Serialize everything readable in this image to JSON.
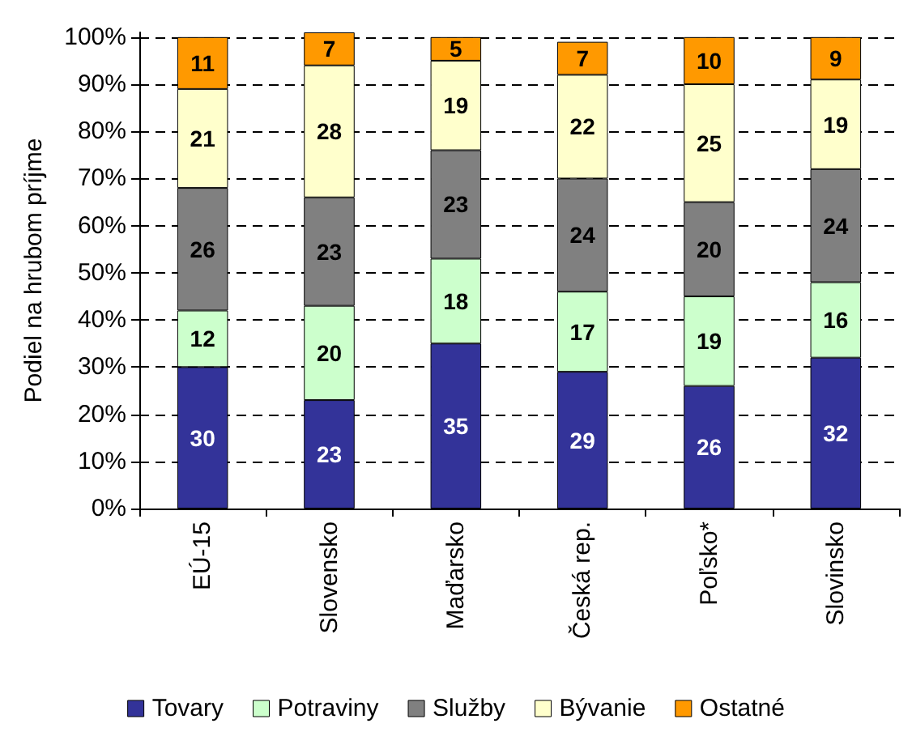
{
  "chart_data": {
    "type": "bar",
    "ylabel": "Podiel na hrubom príjme",
    "categories": [
      "EÚ-15",
      "Slovensko",
      "Maďarsko",
      "Česká rep.",
      "Poľsko*",
      "Slovinsko"
    ],
    "series": [
      {
        "name": "Tovary",
        "color": "#333399",
        "values": [
          30,
          23,
          35,
          29,
          26,
          32
        ]
      },
      {
        "name": "Potraviny",
        "color": "#ccffcc",
        "values": [
          12,
          20,
          18,
          17,
          19,
          16
        ]
      },
      {
        "name": "Služby",
        "color": "#808080",
        "values": [
          26,
          23,
          23,
          24,
          20,
          24
        ]
      },
      {
        "name": "Bývanie",
        "color": "#ffffcc",
        "values": [
          21,
          28,
          19,
          22,
          25,
          19
        ]
      },
      {
        "name": "Ostatné",
        "color": "#ff9900",
        "values": [
          11,
          7,
          5,
          7,
          10,
          9
        ]
      }
    ],
    "stacked": true,
    "data_labels": true,
    "ylim": [
      0,
      101
    ],
    "yticks": [
      {
        "value": 0,
        "label": "0%"
      },
      {
        "value": 10,
        "label": "10%"
      },
      {
        "value": 20,
        "label": "20%"
      },
      {
        "value": 30,
        "label": "30%"
      },
      {
        "value": 40,
        "label": "40%"
      },
      {
        "value": 50,
        "label": "50%"
      },
      {
        "value": 60,
        "label": "60%"
      },
      {
        "value": 70,
        "label": "70%"
      },
      {
        "value": 80,
        "label": "80%"
      },
      {
        "value": 90,
        "label": "90%"
      },
      {
        "value": 100,
        "label": "100%"
      }
    ],
    "grid": "y",
    "legend": "bottom"
  }
}
